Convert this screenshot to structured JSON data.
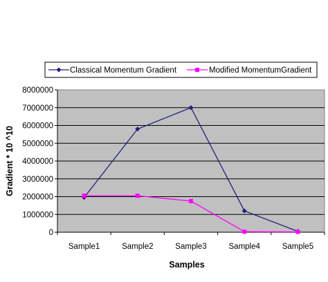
{
  "chart_data": {
    "type": "line",
    "title": "",
    "xlabel": "Samples",
    "ylabel": "Gradient * 10 ^10",
    "categories": [
      "Sample1",
      "Sample2",
      "Sample3",
      "Sample4",
      "Sample5"
    ],
    "ylim": [
      0,
      8000000
    ],
    "yticks": [
      0,
      1000000,
      2000000,
      3000000,
      4000000,
      5000000,
      6000000,
      7000000,
      8000000
    ],
    "ytick_labels": [
      "0",
      "1000000",
      "2000000",
      "3000000",
      "4000000",
      "5000000",
      "6000000",
      "7000000",
      "8000000"
    ],
    "grid": "horizontal",
    "plot_background": "#c0c0c0",
    "legend_position": "top",
    "series": [
      {
        "name": "Classical Momentum  Gradient",
        "values": [
          1950000,
          5800000,
          7000000,
          1200000,
          50000
        ],
        "color": "#1f1f7a",
        "marker": "diamond"
      },
      {
        "name": "Modified MomentumGradient",
        "values": [
          2050000,
          2050000,
          1750000,
          30000,
          20000
        ],
        "color": "#ff00ff",
        "marker": "square"
      }
    ]
  }
}
